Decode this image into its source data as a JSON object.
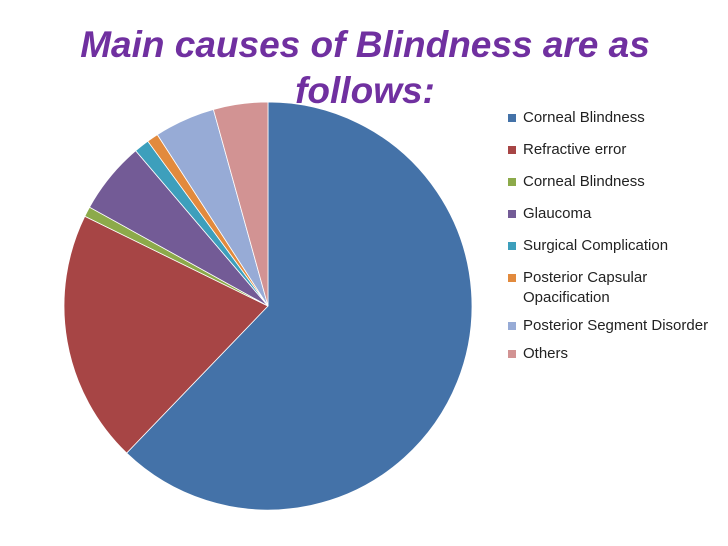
{
  "chart_data": {
    "type": "pie",
    "title": "Main causes of Blindness are as follows:",
    "start_angle_deg": 0,
    "direction": "clockwise",
    "slices": [
      {
        "label": "Corneal Blindness",
        "value": 62.0,
        "color": "#4472a8"
      },
      {
        "label": "Refractive error",
        "value": 20.0,
        "color": "#a74545"
      },
      {
        "label": "Corneal Blindness",
        "value": 0.8,
        "color": "#8caa4a"
      },
      {
        "label": "Glaucoma",
        "value": 5.7,
        "color": "#735b96"
      },
      {
        "label": "Surgical Complication",
        "value": 1.2,
        "color": "#3d9fbc"
      },
      {
        "label": "Posterior Capsular Opacification",
        "value": 0.9,
        "color": "#e28a3d"
      },
      {
        "label": "Posterior Segment Disorder",
        "value": 4.8,
        "color": "#97abd6"
      },
      {
        "label": "Others",
        "value": 4.3,
        "color": "#d29393"
      }
    ],
    "legend_position": "right"
  }
}
